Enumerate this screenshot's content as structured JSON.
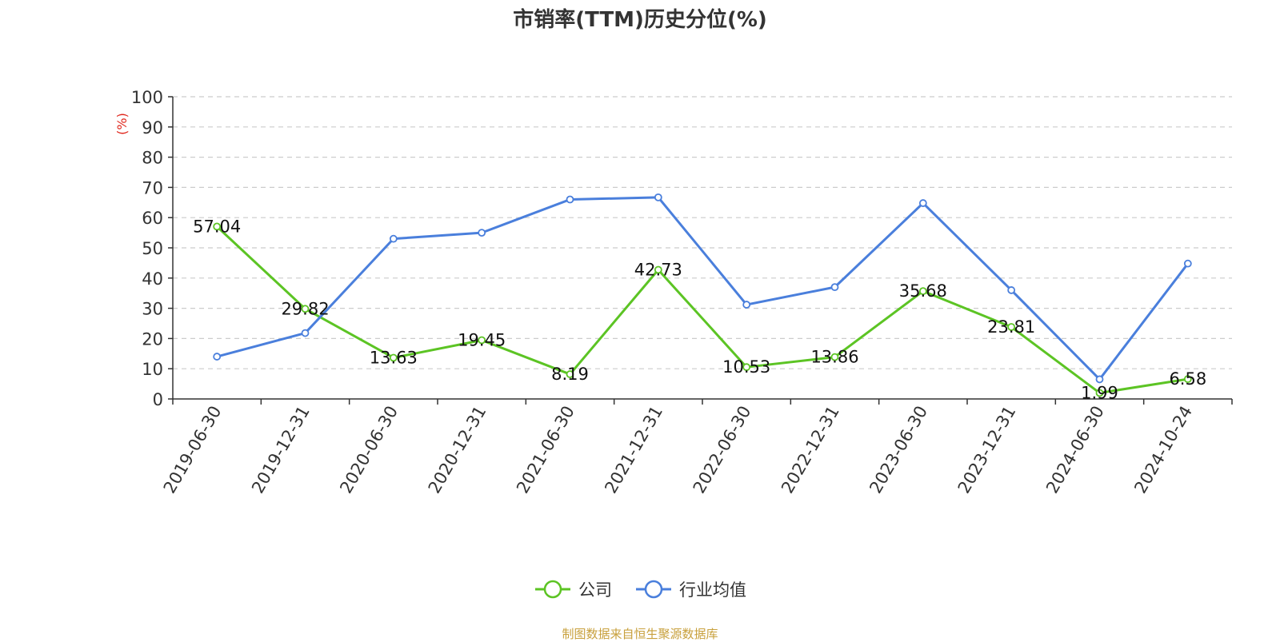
{
  "chart_data": {
    "type": "line",
    "title": "市销率(TTM)历史分位(%)",
    "ylabel": "(%)",
    "xlabel": "",
    "ylim": [
      0,
      100
    ],
    "yticks": [
      0,
      10,
      20,
      30,
      40,
      50,
      60,
      70,
      80,
      90,
      100
    ],
    "grid": true,
    "legend_position": "bottom",
    "categories": [
      "2019-06-30",
      "2019-12-31",
      "2020-06-30",
      "2020-12-31",
      "2021-06-30",
      "2021-12-31",
      "2022-06-30",
      "2022-12-31",
      "2023-06-30",
      "2023-12-31",
      "2024-06-30",
      "2024-10-24"
    ],
    "series": [
      {
        "name": "公司",
        "color": "#5cc424",
        "values": [
          57.04,
          29.82,
          13.63,
          19.45,
          8.19,
          42.73,
          10.53,
          13.86,
          35.68,
          23.81,
          1.99,
          6.58
        ],
        "labels": [
          "57.04",
          "29.82",
          "13.63",
          "19.45",
          "8.19",
          "42.73",
          "10.53",
          "13.86",
          "35.68",
          "23.81",
          "1.99",
          "6.58"
        ]
      },
      {
        "name": "行业均值",
        "color": "#4a7fdc",
        "values": [
          14.0,
          21.8,
          53.0,
          55.0,
          66.0,
          66.7,
          31.2,
          37.0,
          64.8,
          36.0,
          6.5,
          44.8
        ]
      }
    ]
  },
  "source_note": "制图数据来自恒生聚源数据库",
  "colors": {
    "axis": "#333333",
    "grid": "#cccccc",
    "ylabel": "#e0281e",
    "source": "#c8a03c"
  }
}
